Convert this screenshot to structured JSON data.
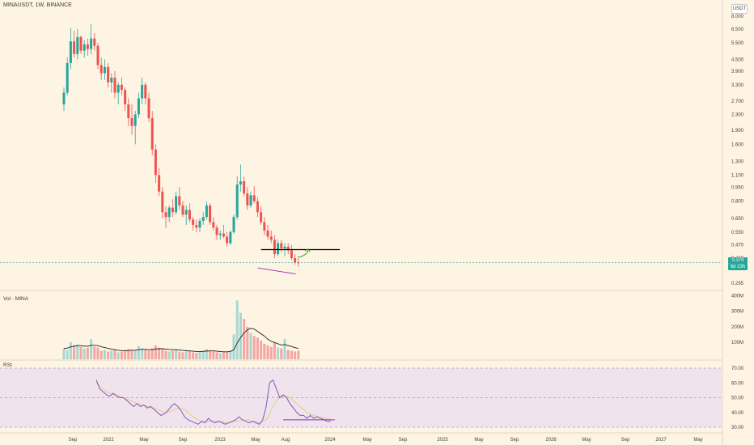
{
  "header": {
    "title": "MINAUSDT, 1W, BINANCE",
    "currency": "USDT"
  },
  "volume_label": "Vol · MINA",
  "rsi_label": "RSI",
  "price_axis": [
    "8.000",
    "6.500",
    "5.500",
    "4.500",
    "3.900",
    "3.300",
    "2.700",
    "2.300",
    "1.900",
    "1.600",
    "1.300",
    "1.100",
    "0.950",
    "0.800",
    "0.650",
    "0.550",
    "0.470",
    "0.400",
    "0.295"
  ],
  "volume_axis": [
    "400M",
    "300M",
    "200M",
    "100M"
  ],
  "rsi_axis": [
    "70.00",
    "60.00",
    "50.00",
    "40.00",
    "30.00"
  ],
  "time_axis": [
    "Sep",
    "2022",
    "May",
    "Sep",
    "2023",
    "May",
    "Aug",
    "2024",
    "May",
    "Sep",
    "2025",
    "May",
    "Sep",
    "2026",
    "May",
    "Sep",
    "2027",
    "May"
  ],
  "current_price": {
    "value": "0.379",
    "change": "6d 23h"
  },
  "colors": {
    "up": "#26a69a",
    "down": "#ef5350",
    "background": "#fdf4e3",
    "rsi_line": "#7e57c2",
    "annotation_line": "#000000",
    "arrow": "#2e9e2e",
    "trend_line": "#9c27b0",
    "volume_ma": "#1e1e1e"
  },
  "chart_data": {
    "type": "candlestick",
    "interval": "1W",
    "symbol": "MINAUSDT",
    "x_start": "2021-06",
    "price_scale": "log",
    "ohlc": [
      [
        2.6,
        3.2,
        2.4,
        3.0
      ],
      [
        3.0,
        4.6,
        2.9,
        4.3
      ],
      [
        4.3,
        6.6,
        4.0,
        5.6
      ],
      [
        5.6,
        6.4,
        4.6,
        4.8
      ],
      [
        4.8,
        6.5,
        4.5,
        5.9
      ],
      [
        5.9,
        6.0,
        4.8,
        5.0
      ],
      [
        5.0,
        5.7,
        4.6,
        5.4
      ],
      [
        5.4,
        5.8,
        4.7,
        5.1
      ],
      [
        5.1,
        6.9,
        4.8,
        5.8
      ],
      [
        5.8,
        6.2,
        5.0,
        5.3
      ],
      [
        5.3,
        5.5,
        4.0,
        4.2
      ],
      [
        4.2,
        4.6,
        3.5,
        3.8
      ],
      [
        3.8,
        4.5,
        3.5,
        4.1
      ],
      [
        4.1,
        4.3,
        3.2,
        3.4
      ],
      [
        3.4,
        3.8,
        3.0,
        3.6
      ],
      [
        3.6,
        3.9,
        2.8,
        3.0
      ],
      [
        3.0,
        3.4,
        2.6,
        3.3
      ],
      [
        3.3,
        3.6,
        2.9,
        3.1
      ],
      [
        3.1,
        3.2,
        2.4,
        2.6
      ],
      [
        2.6,
        2.8,
        2.0,
        2.2
      ],
      [
        2.2,
        2.6,
        1.8,
        2.0
      ],
      [
        2.0,
        2.4,
        1.6,
        2.3
      ],
      [
        2.3,
        3.0,
        2.2,
        2.8
      ],
      [
        2.8,
        3.6,
        2.6,
        3.3
      ],
      [
        3.3,
        3.4,
        2.6,
        2.8
      ],
      [
        2.8,
        3.0,
        2.1,
        2.2
      ],
      [
        2.2,
        2.4,
        1.4,
        1.5
      ],
      [
        1.5,
        1.6,
        1.0,
        1.1
      ],
      [
        1.1,
        1.2,
        0.85,
        0.9
      ],
      [
        0.9,
        0.95,
        0.65,
        0.7
      ],
      [
        0.7,
        0.75,
        0.58,
        0.66
      ],
      [
        0.66,
        0.76,
        0.62,
        0.74
      ],
      [
        0.74,
        0.82,
        0.66,
        0.7
      ],
      [
        0.7,
        0.9,
        0.68,
        0.85
      ],
      [
        0.85,
        0.95,
        0.72,
        0.76
      ],
      [
        0.76,
        0.8,
        0.66,
        0.68
      ],
      [
        0.68,
        0.76,
        0.6,
        0.72
      ],
      [
        0.72,
        0.78,
        0.62,
        0.64
      ],
      [
        0.64,
        0.66,
        0.56,
        0.6
      ],
      [
        0.6,
        0.64,
        0.55,
        0.58
      ],
      [
        0.58,
        0.65,
        0.55,
        0.63
      ],
      [
        0.63,
        0.7,
        0.6,
        0.66
      ],
      [
        0.66,
        0.8,
        0.64,
        0.76
      ],
      [
        0.76,
        0.78,
        0.6,
        0.62
      ],
      [
        0.62,
        0.66,
        0.56,
        0.58
      ],
      [
        0.58,
        0.6,
        0.5,
        0.53
      ],
      [
        0.53,
        0.56,
        0.5,
        0.54
      ],
      [
        0.54,
        0.6,
        0.51,
        0.52
      ],
      [
        0.52,
        0.55,
        0.46,
        0.48
      ],
      [
        0.48,
        0.56,
        0.47,
        0.55
      ],
      [
        0.55,
        0.68,
        0.54,
        0.66
      ],
      [
        0.66,
        1.08,
        0.64,
        0.98
      ],
      [
        0.98,
        1.25,
        0.9,
        1.02
      ],
      [
        1.02,
        1.08,
        0.85,
        0.88
      ],
      [
        0.88,
        0.95,
        0.72,
        0.76
      ],
      [
        0.76,
        0.9,
        0.74,
        0.86
      ],
      [
        0.86,
        0.96,
        0.78,
        0.8
      ],
      [
        0.8,
        0.84,
        0.66,
        0.7
      ],
      [
        0.7,
        0.75,
        0.6,
        0.62
      ],
      [
        0.62,
        0.66,
        0.53,
        0.56
      ],
      [
        0.56,
        0.6,
        0.5,
        0.52
      ],
      [
        0.52,
        0.56,
        0.48,
        0.5
      ],
      [
        0.5,
        0.53,
        0.4,
        0.42
      ],
      [
        0.42,
        0.5,
        0.41,
        0.48
      ],
      [
        0.48,
        0.5,
        0.43,
        0.45
      ],
      [
        0.45,
        0.48,
        0.41,
        0.46
      ],
      [
        0.46,
        0.48,
        0.42,
        0.44
      ],
      [
        0.44,
        0.47,
        0.39,
        0.4
      ],
      [
        0.4,
        0.42,
        0.37,
        0.38
      ],
      [
        0.38,
        0.4,
        0.36,
        0.379
      ]
    ],
    "volume_scale": [
      0,
      450
    ],
    "volumes": [
      70,
      60,
      110,
      90,
      95,
      80,
      70,
      75,
      130,
      80,
      75,
      55,
      60,
      50,
      55,
      60,
      45,
      50,
      55,
      65,
      60,
      55,
      85,
      70,
      60,
      55,
      70,
      90,
      75,
      65,
      55,
      50,
      55,
      60,
      50,
      45,
      50,
      55,
      45,
      40,
      50,
      55,
      65,
      55,
      50,
      45,
      40,
      45,
      50,
      55,
      160,
      380,
      300,
      260,
      210,
      170,
      150,
      140,
      120,
      100,
      90,
      80,
      110,
      75,
      70,
      130,
      60,
      55,
      50,
      55
    ],
    "volume_ma": [
      70,
      72,
      80,
      84,
      88,
      88,
      85,
      84,
      90,
      90,
      88,
      80,
      76,
      70,
      65,
      62,
      58,
      56,
      55,
      57,
      58,
      58,
      62,
      64,
      64,
      62,
      62,
      66,
      68,
      68,
      66,
      63,
      62,
      62,
      60,
      57,
      55,
      54,
      52,
      50,
      50,
      51,
      53,
      54,
      54,
      52,
      50,
      48,
      48,
      50,
      62,
      105,
      140,
      170,
      190,
      200,
      195,
      180,
      165,
      150,
      130,
      115,
      108,
      100,
      92,
      95,
      88,
      82,
      75,
      70
    ],
    "rsi_scale": [
      30,
      70
    ],
    "rsi": [
      62,
      56,
      54,
      52,
      51,
      53,
      51,
      50,
      50,
      48,
      46,
      44,
      46,
      44,
      45,
      43,
      44,
      42,
      40,
      38,
      39,
      41,
      44,
      46,
      44,
      41,
      37,
      35,
      34,
      33,
      32,
      34,
      33,
      36,
      34,
      33,
      34,
      33,
      32,
      33,
      34,
      35,
      37,
      35,
      34,
      33,
      34,
      33,
      32,
      35,
      44,
      60,
      62,
      56,
      50,
      52,
      50,
      46,
      43,
      40,
      38,
      38,
      36,
      38,
      36,
      37,
      36,
      35,
      34,
      34
    ],
    "rsi_ma": [
      60,
      58,
      56,
      54,
      53,
      52,
      52,
      51,
      50,
      49,
      48,
      47,
      46,
      45,
      45,
      44,
      44,
      43,
      42,
      41,
      40,
      40,
      41,
      42,
      43,
      43,
      42,
      40,
      38,
      36,
      35,
      34,
      34,
      34,
      34,
      34,
      34,
      34,
      33,
      33,
      33,
      34,
      34,
      35,
      35,
      35,
      34,
      34,
      33,
      34,
      35,
      39,
      44,
      48,
      50,
      51,
      51,
      50,
      48,
      46,
      44,
      42,
      40,
      39,
      38,
      37,
      37,
      36,
      36,
      35
    ]
  }
}
